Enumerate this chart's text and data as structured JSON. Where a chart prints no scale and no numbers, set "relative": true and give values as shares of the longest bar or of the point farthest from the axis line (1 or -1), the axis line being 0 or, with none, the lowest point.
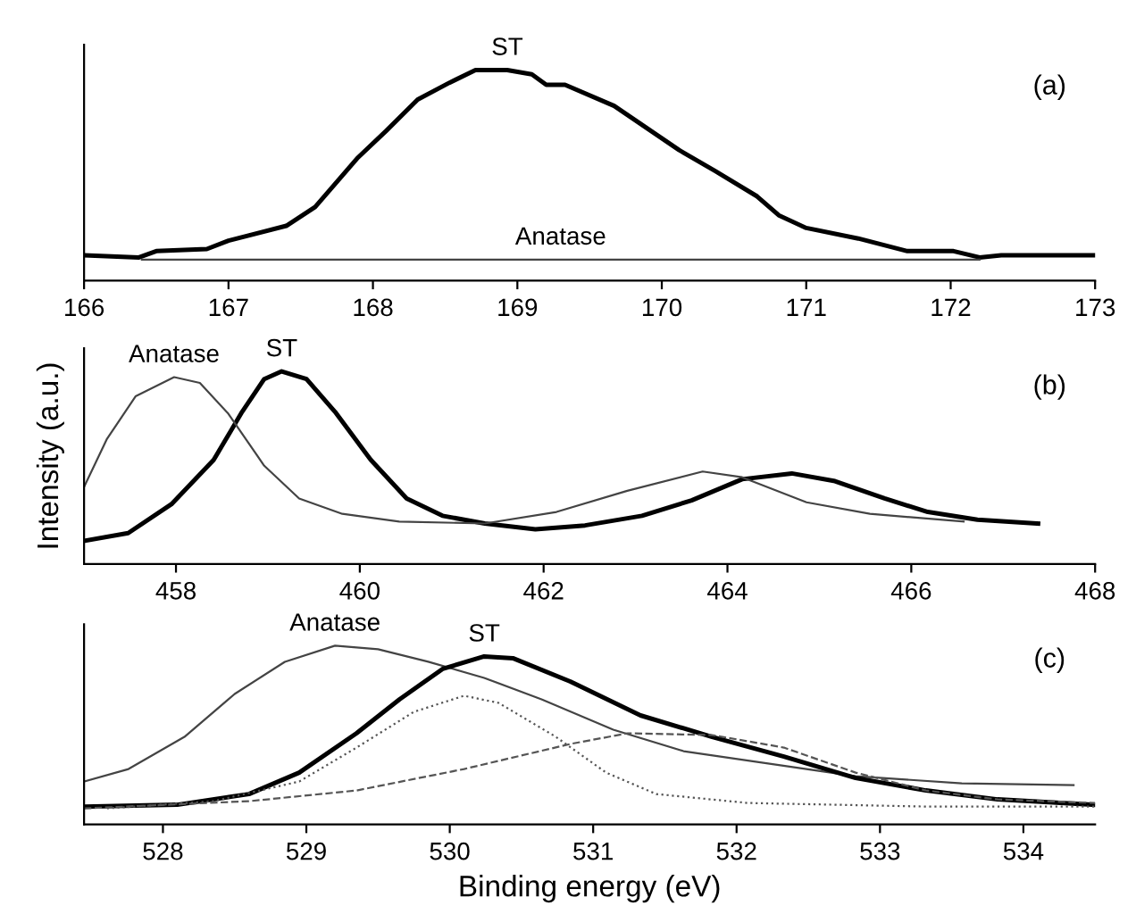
{
  "chart_data": [
    {
      "type": "line",
      "relative": true,
      "xlim": [
        166,
        173
      ],
      "xticks": [
        166,
        167,
        168,
        169,
        170,
        171,
        172,
        173
      ],
      "annotations": [
        "(a)"
      ],
      "legend": false,
      "grid": false,
      "marker": "none",
      "series": [
        {
          "name": "ST",
          "color": "#000000",
          "line_style": "solid",
          "x": [
            166.0,
            166.38,
            166.5,
            166.85,
            167.0,
            167.4,
            167.6,
            167.89,
            168.09,
            168.31,
            168.53,
            168.71,
            168.93,
            169.1,
            169.2,
            169.33,
            169.67,
            170.12,
            170.37,
            170.66,
            170.81,
            171.0,
            171.36,
            171.7,
            172.02,
            172.2,
            172.35,
            173.0
          ],
          "values": [
            0.12,
            0.11,
            0.14,
            0.15,
            0.19,
            0.26,
            0.35,
            0.58,
            0.71,
            0.86,
            0.94,
            1.0,
            1.0,
            0.98,
            0.93,
            0.93,
            0.83,
            0.62,
            0.52,
            0.4,
            0.31,
            0.25,
            0.2,
            0.14,
            0.14,
            0.11,
            0.12,
            0.12
          ]
        },
        {
          "name": "Anatase",
          "color": "#444444",
          "line_style": "solid",
          "x": [
            166.4,
            167.5,
            168.5,
            169.3,
            170.3,
            171.2,
            172.2
          ],
          "values": [
            0.1,
            0.1,
            0.1,
            0.1,
            0.1,
            0.1,
            0.1
          ]
        }
      ]
    },
    {
      "type": "line",
      "relative": true,
      "xlim": [
        457,
        468
      ],
      "xticks": [
        458,
        460,
        462,
        464,
        466,
        468
      ],
      "ylabel": "Intensity (a.u.)",
      "annotations": [
        "(b)"
      ],
      "legend": false,
      "grid": false,
      "marker": "none",
      "series": [
        {
          "name": "ST",
          "color": "#000000",
          "line_style": "solid",
          "x": [
            457.0,
            457.48,
            457.95,
            458.41,
            458.72,
            458.96,
            459.15,
            459.42,
            459.73,
            460.12,
            460.51,
            460.9,
            461.36,
            461.91,
            462.45,
            463.07,
            463.61,
            464.16,
            464.7,
            465.17,
            465.71,
            466.18,
            466.72,
            467.38
          ],
          "values": [
            0.12,
            0.16,
            0.31,
            0.54,
            0.79,
            0.96,
            1.0,
            0.96,
            0.79,
            0.54,
            0.34,
            0.25,
            0.21,
            0.18,
            0.2,
            0.25,
            0.33,
            0.44,
            0.47,
            0.43,
            0.34,
            0.27,
            0.23,
            0.21
          ]
        },
        {
          "name": "Anatase",
          "color": "#444444",
          "line_style": "solid",
          "x": [
            457.0,
            457.25,
            457.56,
            457.98,
            458.26,
            458.57,
            458.96,
            459.34,
            459.81,
            460.43,
            461.36,
            462.14,
            462.91,
            463.73,
            464.16,
            464.86,
            465.55,
            466.57
          ],
          "values": [
            0.4,
            0.65,
            0.87,
            0.97,
            0.94,
            0.78,
            0.51,
            0.34,
            0.26,
            0.22,
            0.21,
            0.27,
            0.38,
            0.48,
            0.45,
            0.32,
            0.26,
            0.22
          ]
        }
      ]
    },
    {
      "type": "line",
      "relative": true,
      "xlim": [
        527.45,
        534.5
      ],
      "xticks": [
        528,
        529,
        530,
        531,
        532,
        533,
        534
      ],
      "xlabel": "Binding energy (eV)",
      "annotations": [
        "(c)"
      ],
      "legend": false,
      "grid": false,
      "marker": "none",
      "series": [
        {
          "name": "Anatase",
          "color": "#444444",
          "line_style": "solid",
          "x": [
            527.45,
            527.76,
            528.15,
            528.5,
            528.85,
            529.2,
            529.5,
            529.85,
            530.24,
            530.64,
            531.14,
            531.63,
            532.23,
            532.83,
            533.57,
            534.35
          ],
          "values": [
            0.24,
            0.31,
            0.49,
            0.73,
            0.91,
            1.0,
            0.98,
            0.91,
            0.82,
            0.7,
            0.53,
            0.41,
            0.34,
            0.27,
            0.23,
            0.22
          ]
        },
        {
          "name": "ST",
          "color": "#000000",
          "line_style": "solid",
          "x": [
            527.45,
            528.1,
            528.6,
            528.95,
            529.35,
            529.65,
            529.95,
            530.24,
            530.44,
            530.84,
            531.33,
            531.83,
            532.33,
            532.83,
            533.32,
            533.82,
            534.5
          ],
          "values": [
            0.1,
            0.11,
            0.17,
            0.29,
            0.51,
            0.7,
            0.87,
            0.94,
            0.93,
            0.8,
            0.61,
            0.49,
            0.38,
            0.26,
            0.19,
            0.14,
            0.11
          ]
        },
        {
          "color": "#555555",
          "line_style": "dotted",
          "x": [
            527.61,
            528.35,
            528.95,
            529.35,
            529.75,
            530.1,
            530.34,
            530.74,
            531.09,
            531.44,
            532.08,
            533.32,
            534.5
          ],
          "values": [
            0.09,
            0.13,
            0.24,
            0.43,
            0.63,
            0.72,
            0.68,
            0.49,
            0.29,
            0.17,
            0.12,
            0.1,
            0.1
          ]
        },
        {
          "color": "#555555",
          "line_style": "dashed",
          "x": [
            527.45,
            528.6,
            529.35,
            530.1,
            530.84,
            531.24,
            531.83,
            532.33,
            532.83,
            533.32,
            533.82,
            534.5
          ],
          "values": [
            0.09,
            0.13,
            0.19,
            0.31,
            0.45,
            0.51,
            0.5,
            0.43,
            0.29,
            0.19,
            0.14,
            0.12
          ]
        }
      ]
    }
  ]
}
